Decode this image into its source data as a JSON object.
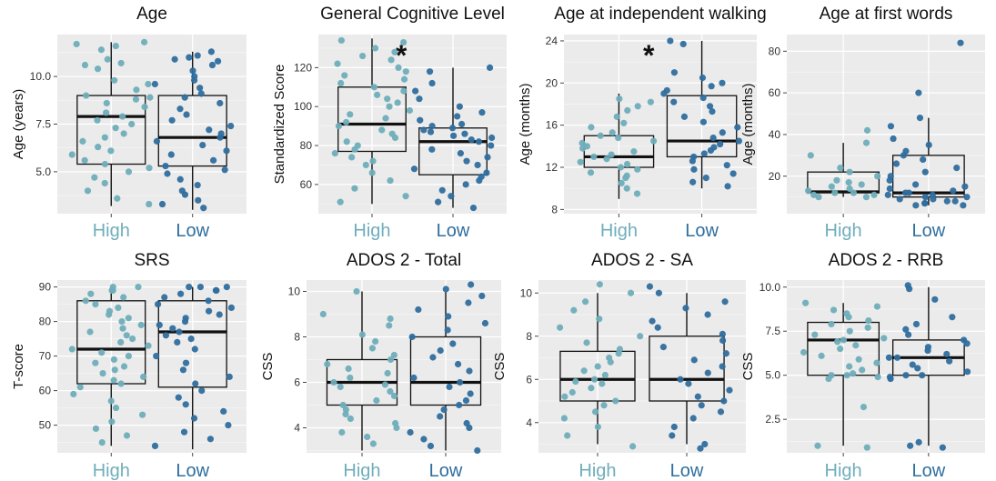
{
  "colors": {
    "High": "#6faebb",
    "Low": "#2f6e9e",
    "panel_bg": "#ebebeb"
  },
  "chart_data": [
    {
      "type": "box",
      "title": "Age",
      "ylabel": "Age (years)",
      "categories": [
        "High",
        "Low"
      ],
      "ylim": [
        2.8,
        12.2
      ],
      "yticks": [
        "5.0",
        "7.5",
        "10.0"
      ],
      "ytick_values": [
        5,
        7.5,
        10
      ],
      "boxes": [
        {
          "name": "High",
          "q1": 5.4,
          "median": 7.9,
          "q3": 9.0,
          "whisker_low": 3.2,
          "whisker_high": 11.8,
          "points": [
            11.8,
            11.7,
            11.6,
            11.4,
            10.9,
            10.7,
            10.6,
            10.4,
            9.8,
            9.6,
            9.3,
            9.0,
            8.9,
            8.8,
            8.6,
            8.4,
            8.1,
            7.9,
            7.7,
            7.5,
            7.3,
            7.0,
            6.8,
            6.6,
            6.3,
            6.1,
            5.9,
            5.6,
            5.4,
            5.2,
            5.0,
            4.7,
            4.4,
            4.0,
            3.6,
            3.3
          ]
        },
        {
          "name": "Low",
          "q1": 5.3,
          "median": 6.8,
          "q3": 9.0,
          "whisker_low": 3.0,
          "whisker_high": 11.3,
          "points": [
            11.3,
            11.1,
            11.0,
            10.9,
            10.8,
            10.6,
            10.3,
            10.0,
            9.8,
            9.6,
            9.4,
            9.1,
            8.9,
            8.6,
            8.3,
            8.0,
            7.7,
            7.4,
            7.2,
            7.0,
            6.8,
            6.6,
            6.4,
            6.1,
            5.9,
            5.6,
            5.3,
            5.1,
            4.9,
            4.6,
            4.3,
            4.0,
            3.8,
            3.5,
            3.3,
            3.1
          ]
        }
      ]
    },
    {
      "type": "box",
      "title": "General Cognitive Level",
      "ylabel": "Standardized Score",
      "significance": "*",
      "categories": [
        "High",
        "Low"
      ],
      "ylim": [
        45,
        137
      ],
      "yticks": [
        "60",
        "80",
        "100",
        "120"
      ],
      "ytick_values": [
        60,
        80,
        100,
        120
      ],
      "boxes": [
        {
          "name": "High",
          "q1": 77,
          "median": 91,
          "q3": 110,
          "whisker_low": 50,
          "whisker_high": 135,
          "points": [
            134,
            133,
            130,
            128,
            126,
            124,
            122,
            120,
            118,
            116,
            114,
            112,
            110,
            108,
            106,
            104,
            102,
            100,
            98,
            96,
            94,
            92,
            90,
            88,
            86,
            84,
            82,
            80,
            78,
            76,
            74,
            72,
            70,
            66,
            62,
            58,
            54,
            51
          ]
        },
        {
          "name": "Low",
          "q1": 65,
          "median": 82,
          "q3": 89,
          "whisker_low": 48,
          "whisker_high": 120,
          "points": [
            120,
            118,
            112,
            108,
            104,
            100,
            97,
            95,
            93,
            91,
            90,
            89,
            88,
            87,
            86,
            85,
            84,
            83,
            82,
            80,
            78,
            76,
            74,
            72,
            70,
            68,
            66,
            64,
            62,
            60,
            57,
            54,
            51,
            48
          ]
        }
      ]
    },
    {
      "type": "box",
      "title": "Age at independent walking",
      "ylabel": "Age (months)",
      "significance": "*",
      "categories": [
        "High",
        "Low"
      ],
      "ylim": [
        7.6,
        24.6
      ],
      "yticks": [
        "8",
        "12",
        "16",
        "20",
        "24"
      ],
      "ytick_values": [
        8,
        12,
        16,
        20,
        24
      ],
      "boxes": [
        {
          "name": "High",
          "q1": 12,
          "median": 13,
          "q3": 15,
          "whisker_low": 9,
          "whisker_high": 19,
          "points": [
            18.5,
            18.2,
            17.8,
            17.4,
            16.8,
            16.2,
            15.8,
            15.3,
            15.0,
            14.8,
            14.5,
            14.3,
            14.0,
            13.8,
            13.5,
            13.2,
            13.0,
            12.8,
            12.5,
            12.3,
            12.0,
            11.8,
            11.5,
            11.2,
            11.0,
            10.5,
            10.0,
            9.5
          ]
        },
        {
          "name": "Low",
          "q1": 13,
          "median": 14.5,
          "q3": 18.8,
          "whisker_low": 10,
          "whisker_high": 24,
          "points": [
            24.0,
            23.7,
            21.0,
            20.5,
            20.0,
            19.7,
            19.3,
            19.0,
            18.6,
            18.2,
            17.8,
            17.3,
            16.8,
            16.3,
            15.8,
            15.3,
            14.8,
            14.5,
            14.2,
            13.9,
            13.6,
            13.3,
            13.0,
            12.6,
            12.2,
            11.8,
            11.4,
            11.0,
            10.6,
            10.2
          ]
        }
      ]
    },
    {
      "type": "box",
      "title": "Age at first words",
      "ylabel": "Age (months)",
      "categories": [
        "High",
        "Low"
      ],
      "ylim": [
        2,
        88
      ],
      "yticks": [
        "20",
        "40",
        "60",
        "80"
      ],
      "ytick_values": [
        20,
        40,
        60,
        80
      ],
      "boxes": [
        {
          "name": "High",
          "q1": 12,
          "median": 12.5,
          "q3": 22,
          "whisker_low": 10,
          "whisker_high": 36,
          "points": [
            42,
            36,
            30,
            24,
            22,
            20,
            18,
            17,
            16,
            15,
            14,
            13,
            12,
            12,
            11,
            11,
            10,
            10
          ]
        },
        {
          "name": "Low",
          "q1": 10,
          "median": 12,
          "q3": 30,
          "whisker_low": 6,
          "whisker_high": 48,
          "points": [
            84,
            60,
            48,
            44,
            38,
            35,
            32,
            30,
            28,
            26,
            24,
            22,
            20,
            18,
            16,
            15,
            14,
            13,
            12,
            12,
            11,
            11,
            10,
            10,
            9,
            9,
            8,
            8,
            7,
            7,
            6,
            6
          ]
        }
      ]
    },
    {
      "type": "box",
      "title": "SRS",
      "ylabel": "T-score",
      "categories": [
        "High",
        "Low"
      ],
      "ylim": [
        42,
        92
      ],
      "yticks": [
        "50",
        "60",
        "70",
        "80",
        "90"
      ],
      "ytick_values": [
        50,
        60,
        70,
        80,
        90
      ],
      "boxes": [
        {
          "name": "High",
          "q1": 62,
          "median": 72,
          "q3": 86,
          "whisker_low": 44,
          "whisker_high": 90,
          "points": [
            90,
            90,
            89,
            89,
            88,
            87,
            86,
            85,
            84,
            83,
            82,
            81,
            80,
            79,
            78,
            77,
            76,
            75,
            74,
            73,
            72,
            71,
            70,
            69,
            68,
            67,
            66,
            65,
            64,
            63,
            62,
            61,
            59,
            57,
            55,
            53,
            51,
            49,
            47,
            45
          ]
        },
        {
          "name": "Low",
          "q1": 61,
          "median": 77,
          "q3": 86,
          "whisker_low": 43,
          "whisker_high": 90,
          "points": [
            90,
            90,
            90,
            89,
            89,
            88,
            87,
            86,
            85,
            84,
            83,
            82,
            81,
            80,
            79,
            78,
            77,
            76,
            75,
            74,
            72,
            70,
            68,
            66,
            64,
            62,
            60,
            58,
            56,
            54,
            52,
            50,
            48,
            46,
            44
          ]
        }
      ]
    },
    {
      "type": "box",
      "title": "ADOS 2 - Total",
      "ylabel": "CSS",
      "categories": [
        "High",
        "Low"
      ],
      "ylim": [
        2.9,
        10.5
      ],
      "yticks": [
        "4",
        "6",
        "8",
        "10"
      ],
      "ytick_values": [
        4,
        6,
        8,
        10
      ],
      "boxes": [
        {
          "name": "High",
          "q1": 5,
          "median": 6,
          "q3": 7,
          "whisker_low": 3,
          "whisker_high": 10,
          "points": [
            10,
            9,
            8.8,
            8.5,
            8.1,
            7.8,
            7.5,
            7.2,
            7.0,
            6.8,
            6.6,
            6.4,
            6.2,
            6.0,
            5.9,
            5.8,
            5.6,
            5.4,
            5.2,
            5.0,
            4.8,
            4.6,
            4.4,
            4.2,
            4.0,
            3.8,
            3.6,
            3.3
          ]
        },
        {
          "name": "Low",
          "q1": 5,
          "median": 6,
          "q3": 8,
          "whisker_low": 3,
          "whisker_high": 10,
          "points": [
            10.3,
            10.1,
            9.8,
            9.5,
            9.2,
            8.9,
            8.6,
            8.3,
            8.0,
            7.7,
            7.4,
            7.1,
            6.8,
            6.5,
            6.2,
            6.0,
            5.8,
            5.5,
            5.2,
            5.0,
            4.8,
            4.5,
            4.2,
            4.0,
            3.8,
            3.5,
            3.2,
            3.0
          ]
        }
      ]
    },
    {
      "type": "box",
      "title": "ADOS 2 - SA",
      "ylabel": "CSS",
      "categories": [
        "High",
        "Low"
      ],
      "ylim": [
        2.6,
        10.6
      ],
      "yticks": [
        "4",
        "6",
        "8",
        "10"
      ],
      "ytick_values": [
        4,
        6,
        8,
        10
      ],
      "boxes": [
        {
          "name": "High",
          "q1": 5,
          "median": 6,
          "q3": 7.3,
          "whisker_low": 3,
          "whisker_high": 10,
          "points": [
            10.4,
            10.0,
            9.6,
            9.2,
            8.8,
            8.4,
            8.0,
            7.7,
            7.4,
            7.2,
            7.0,
            6.8,
            6.6,
            6.4,
            6.2,
            6.0,
            5.9,
            5.8,
            5.6,
            5.4,
            5.2,
            5.0,
            4.8,
            4.5,
            4.2,
            3.8,
            3.4,
            2.9
          ]
        },
        {
          "name": "Low",
          "q1": 5,
          "median": 6,
          "q3": 8,
          "whisker_low": 3,
          "whisker_high": 10,
          "points": [
            10.3,
            10.0,
            9.6,
            9.3,
            9.0,
            8.7,
            8.4,
            8.1,
            7.8,
            7.5,
            7.2,
            6.9,
            6.6,
            6.3,
            6.0,
            5.8,
            5.5,
            5.2,
            5.0,
            4.8,
            4.5,
            4.2,
            3.8,
            3.4,
            3.0,
            2.8
          ]
        }
      ]
    },
    {
      "type": "box",
      "title": "ADOS 2 - RRB",
      "ylabel": "CSS",
      "categories": [
        "High",
        "Low"
      ],
      "ylim": [
        0.6,
        10.4
      ],
      "yticks": [
        "2.5",
        "5.0",
        "7.5",
        "10.0"
      ],
      "ytick_values": [
        2.5,
        5,
        7.5,
        10
      ],
      "boxes": [
        {
          "name": "High",
          "q1": 5,
          "median": 7,
          "q3": 8,
          "whisker_low": 1,
          "whisker_high": 9.1,
          "points": [
            9.1,
            8.9,
            8.7,
            8.5,
            8.3,
            8.1,
            7.9,
            7.7,
            7.5,
            7.3,
            7.1,
            7.0,
            6.9,
            6.7,
            6.5,
            6.3,
            6.1,
            5.9,
            5.7,
            5.5,
            5.3,
            5.1,
            5.0,
            5.0,
            4.9,
            4.8,
            3.2,
            1.0,
            0.9
          ]
        },
        {
          "name": "Low",
          "q1": 5,
          "median": 6,
          "q3": 7,
          "whisker_low": 1,
          "whisker_high": 10,
          "points": [
            10.1,
            9.9,
            9.3,
            8.3,
            7.9,
            7.6,
            7.3,
            7.0,
            6.8,
            6.6,
            6.4,
            6.2,
            6.0,
            6.0,
            5.8,
            5.6,
            5.4,
            5.2,
            5.0,
            5.0,
            4.9,
            4.8,
            1.2,
            1.0,
            0.9
          ]
        }
      ]
    }
  ]
}
